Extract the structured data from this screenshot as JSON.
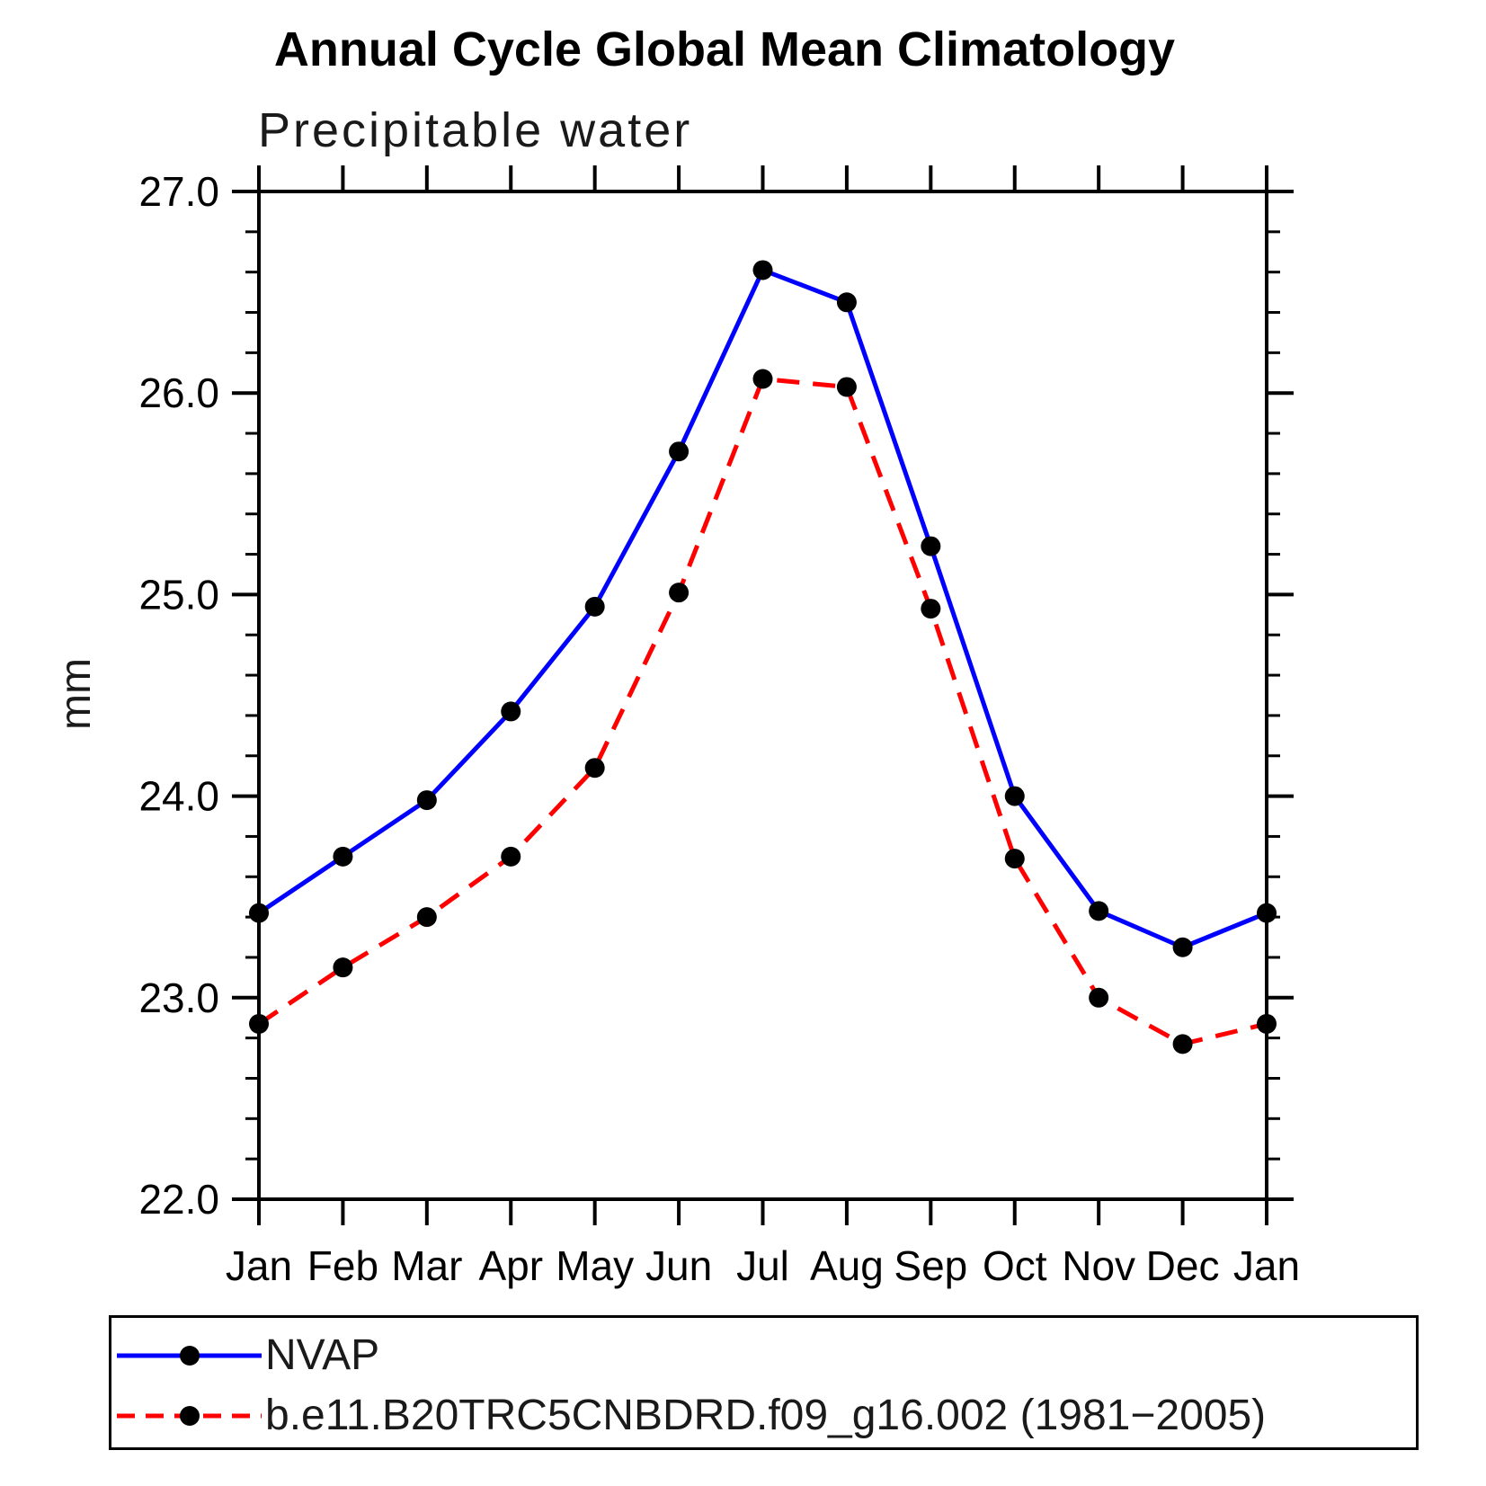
{
  "chart_data": {
    "type": "line",
    "title": "Annual Cycle Global Mean Climatology",
    "subtitle": "Precipitable water",
    "ylabel": "mm",
    "x_categories": [
      "Jan",
      "Feb",
      "Mar",
      "Apr",
      "May",
      "Jun",
      "Jul",
      "Aug",
      "Sep",
      "Oct",
      "Nov",
      "Dec",
      "Jan"
    ],
    "ylim": [
      22.0,
      27.0
    ],
    "ytick_values": [
      22,
      23,
      24,
      25,
      26,
      27
    ],
    "ytick_labels": [
      "22.0",
      "23.0",
      "24.0",
      "25.0",
      "26.0",
      "27.0"
    ],
    "yminor_step": 0.2,
    "grid": false,
    "legend_position": "bottom-left-box",
    "series": [
      {
        "name": "NVAP",
        "color": "#0000ff",
        "line_style": "solid",
        "marker": "filled-circle",
        "marker_color": "#000000",
        "values": [
          23.42,
          23.7,
          23.98,
          24.42,
          24.94,
          25.71,
          26.61,
          26.45,
          25.24,
          24.0,
          23.43,
          23.25,
          23.42
        ]
      },
      {
        "name": "b.e11.B20TRC5CNBDRD.f09_g16.002 (1981−2005)",
        "color": "#ff0000",
        "line_style": "dashed",
        "marker": "filled-circle",
        "marker_color": "#000000",
        "values": [
          22.87,
          23.15,
          23.4,
          23.7,
          24.14,
          25.01,
          26.07,
          26.03,
          24.93,
          23.69,
          23.0,
          22.77,
          22.87
        ]
      }
    ]
  }
}
